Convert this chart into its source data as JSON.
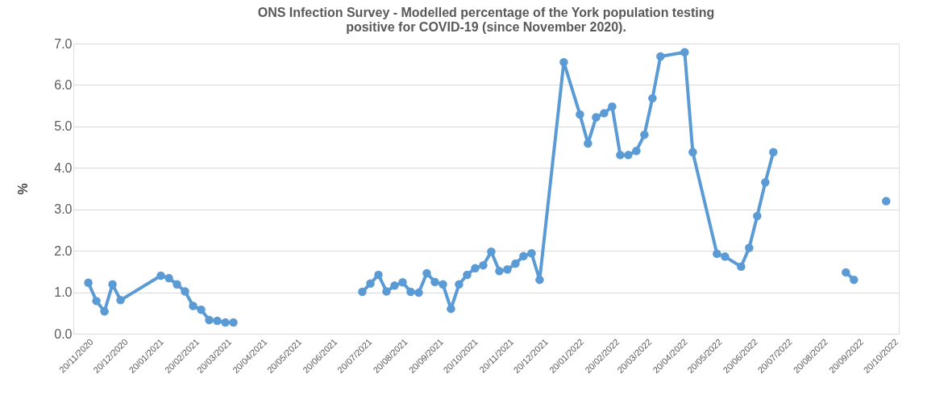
{
  "chart_data": {
    "type": "line",
    "title": [
      "ONS Infection Survey - Modelled percentage of the York population testing",
      "positive for COVID-19 (since November 2020)."
    ],
    "ylabel": "%",
    "x": [
      "2020-11-20",
      "2020-11-27",
      "2020-12-04",
      "2020-12-11",
      "2020-12-18",
      "2021-01-22",
      "2021-01-29",
      "2021-02-05",
      "2021-02-12",
      "2021-02-19",
      "2021-02-26",
      "2021-03-05",
      "2021-03-12",
      "2021-03-19",
      "2021-03-26",
      "2021-05-21",
      "2021-07-16",
      "2021-07-23",
      "2021-07-30",
      "2021-08-06",
      "2021-08-13",
      "2021-08-20",
      "2021-08-27",
      "2021-09-03",
      "2021-09-10",
      "2021-09-17",
      "2021-09-24",
      "2021-10-01",
      "2021-10-08",
      "2021-10-15",
      "2021-10-22",
      "2021-10-29",
      "2021-11-05",
      "2021-11-12",
      "2021-11-19",
      "2021-11-26",
      "2021-12-03",
      "2021-12-10",
      "2021-12-17",
      "2022-01-07",
      "2022-01-21",
      "2022-01-28",
      "2022-02-04",
      "2022-02-11",
      "2022-02-18",
      "2022-02-25",
      "2022-03-04",
      "2022-03-11",
      "2022-03-18",
      "2022-03-25",
      "2022-04-01",
      "2022-04-22",
      "2022-04-29",
      "2022-05-20",
      "2022-05-27",
      "2022-06-10",
      "2022-06-17",
      "2022-06-24",
      "2022-07-01",
      "2022-07-08",
      "2022-08-12",
      "2022-09-09",
      "2022-09-16",
      "2022-09-30",
      "2022-10-14"
    ],
    "series": [
      {
        "color": "#5b9bd5",
        "values": [
          1.23,
          0.79,
          0.54,
          1.19,
          0.81,
          1.4,
          1.34,
          1.19,
          1.02,
          0.67,
          0.58,
          0.33,
          0.31,
          0.27,
          0.27,
          null,
          1.01,
          1.21,
          1.42,
          1.02,
          1.16,
          1.24,
          1.01,
          0.99,
          1.46,
          1.25,
          1.19,
          0.6,
          1.19,
          1.42,
          1.58,
          1.65,
          1.98,
          1.51,
          1.55,
          1.69,
          1.87,
          1.94,
          1.3,
          6.55,
          5.29,
          4.59,
          5.22,
          5.32,
          5.48,
          4.31,
          4.31,
          4.41,
          4.8,
          5.68,
          6.69,
          6.79,
          4.38,
          1.93,
          1.86,
          1.62,
          2.07,
          2.84,
          3.65,
          4.38,
          null,
          1.48,
          1.3,
          null,
          3.2
        ]
      }
    ],
    "xlim": [
      "2020-11-07",
      "2022-10-25"
    ],
    "xticks": [
      {
        "value": "2020-11-20",
        "label": "20/11/2020"
      },
      {
        "value": "2020-12-20",
        "label": "20/12/2020"
      },
      {
        "value": "2021-01-20",
        "label": "20/01/2021"
      },
      {
        "value": "2021-02-20",
        "label": "20/02/2021"
      },
      {
        "value": "2021-03-20",
        "label": "20/03/2021"
      },
      {
        "value": "2021-04-20",
        "label": "20/04/2021"
      },
      {
        "value": "2021-05-20",
        "label": "20/05/2021"
      },
      {
        "value": "2021-06-20",
        "label": "20/06/2021"
      },
      {
        "value": "2021-07-20",
        "label": "20/07/2021"
      },
      {
        "value": "2021-08-20",
        "label": "20/08/2021"
      },
      {
        "value": "2021-09-20",
        "label": "20/09/2021"
      },
      {
        "value": "2021-10-20",
        "label": "20/10/2021"
      },
      {
        "value": "2021-11-20",
        "label": "20/11/2021"
      },
      {
        "value": "2021-12-20",
        "label": "20/12/2021"
      },
      {
        "value": "2022-01-20",
        "label": "20/01/2022"
      },
      {
        "value": "2022-02-20",
        "label": "20/02/2022"
      },
      {
        "value": "2022-03-20",
        "label": "20/03/2022"
      },
      {
        "value": "2022-04-20",
        "label": "20/04/2022"
      },
      {
        "value": "2022-05-20",
        "label": "20/05/2022"
      },
      {
        "value": "2022-06-20",
        "label": "20/06/2022"
      },
      {
        "value": "2022-07-20",
        "label": "20/07/2022"
      },
      {
        "value": "2022-08-20",
        "label": "20/08/2022"
      },
      {
        "value": "2022-09-20",
        "label": "20/09/2022"
      },
      {
        "value": "2022-10-20",
        "label": "20/10/2022"
      }
    ],
    "ylim": [
      0,
      7
    ],
    "yticks": [
      {
        "value": 0,
        "label": "0.0"
      },
      {
        "value": 1,
        "label": "1.0"
      },
      {
        "value": 2,
        "label": "2.0"
      },
      {
        "value": 3,
        "label": "3.0"
      },
      {
        "value": 4,
        "label": "4.0"
      },
      {
        "value": 5,
        "label": "5.0"
      },
      {
        "value": 6,
        "label": "6.0"
      },
      {
        "value": 7,
        "label": "7.0"
      }
    ],
    "grid": "y",
    "marker": "circle",
    "line_style": "solid"
  }
}
